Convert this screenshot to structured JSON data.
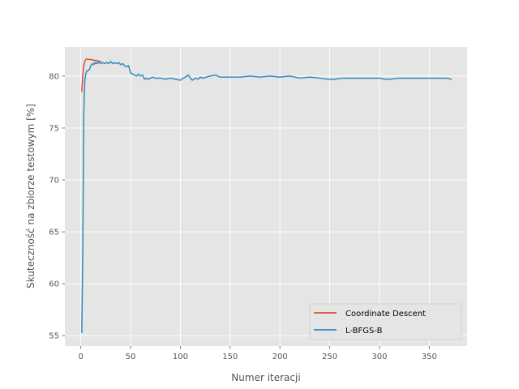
{
  "chart_data": {
    "type": "line",
    "title": "",
    "xlabel": "Numer iteracji",
    "ylabel": "Skuteczność na zbiorze testowym [%]",
    "xlim": [
      -16,
      388
    ],
    "ylim": [
      54,
      82.8
    ],
    "xticks": [
      0,
      50,
      100,
      150,
      200,
      250,
      300,
      350
    ],
    "yticks": [
      55,
      60,
      65,
      70,
      75,
      80
    ],
    "grid": true,
    "legend_position": "lower-right",
    "colors": {
      "plot_background": "#E5E5E5",
      "grid": "#FFFFFF",
      "text": "#555555"
    },
    "series": [
      {
        "name": "Coordinate Descent",
        "color": "#E24A33",
        "x": [
          1,
          2,
          3,
          4,
          5,
          6,
          8,
          10,
          12,
          14,
          16,
          18,
          20
        ],
        "y": [
          78.5,
          80.0,
          81.0,
          81.4,
          81.6,
          81.65,
          81.6,
          81.6,
          81.55,
          81.5,
          81.5,
          81.45,
          81.4
        ]
      },
      {
        "name": "L-BFGS-B",
        "color": "#348ABD",
        "x": [
          1,
          2,
          3,
          4,
          5,
          6,
          7,
          8,
          9,
          10,
          11,
          12,
          13,
          14,
          15,
          16,
          17,
          18,
          19,
          20,
          22,
          24,
          26,
          28,
          30,
          32,
          34,
          36,
          38,
          40,
          42,
          44,
          46,
          48,
          50,
          52,
          54,
          56,
          58,
          60,
          62,
          64,
          66,
          68,
          70,
          72,
          75,
          80,
          85,
          90,
          95,
          100,
          103,
          105,
          108,
          110,
          112,
          115,
          118,
          120,
          123,
          126,
          130,
          135,
          140,
          150,
          160,
          170,
          180,
          190,
          200,
          210,
          220,
          230,
          240,
          248,
          255,
          262,
          270,
          280,
          290,
          300,
          305,
          310,
          320,
          330,
          340,
          350,
          360,
          368,
          372
        ],
        "y": [
          55.3,
          63.0,
          76.5,
          79.5,
          80.2,
          80.5,
          80.5,
          80.6,
          80.7,
          81.0,
          81.1,
          81.2,
          81.1,
          81.3,
          81.2,
          81.3,
          81.2,
          81.4,
          81.3,
          81.2,
          81.3,
          81.2,
          81.3,
          81.2,
          81.4,
          81.2,
          81.3,
          81.2,
          81.3,
          81.1,
          81.2,
          81.0,
          80.9,
          81.0,
          80.3,
          80.2,
          80.1,
          80.0,
          80.2,
          80.0,
          80.1,
          79.7,
          79.8,
          79.7,
          79.8,
          79.9,
          79.8,
          79.8,
          79.7,
          79.8,
          79.7,
          79.6,
          79.8,
          79.9,
          80.1,
          79.8,
          79.6,
          79.8,
          79.7,
          79.9,
          79.8,
          79.9,
          80.0,
          80.1,
          79.9,
          79.9,
          79.9,
          80.0,
          79.9,
          80.0,
          79.9,
          80.0,
          79.8,
          79.9,
          79.8,
          79.7,
          79.7,
          79.8,
          79.8,
          79.8,
          79.8,
          79.8,
          79.7,
          79.7,
          79.8,
          79.8,
          79.8,
          79.8,
          79.8,
          79.8,
          79.7
        ]
      }
    ]
  }
}
